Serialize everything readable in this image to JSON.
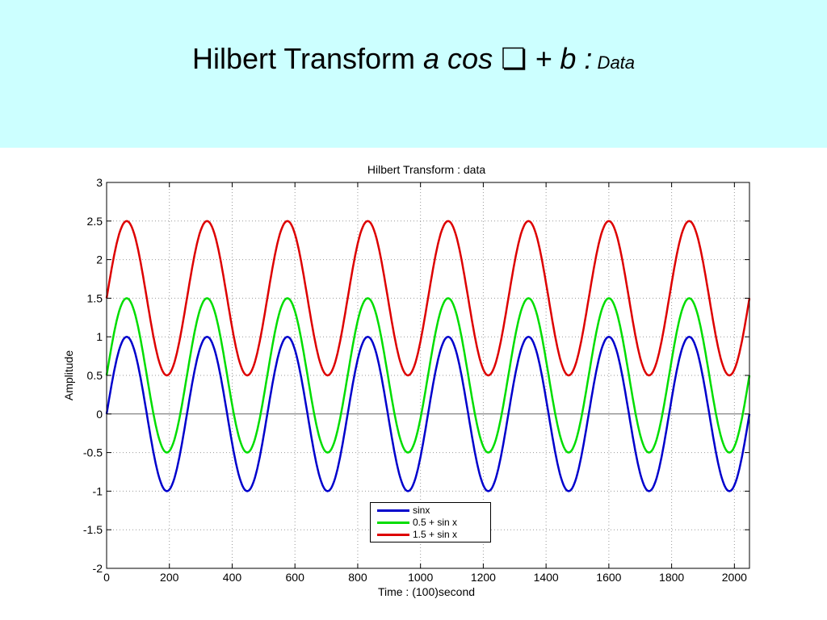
{
  "slide": {
    "title_plain": "Hilbert Transform ",
    "title_italic": "a cos ",
    "title_symbol": "❏",
    "title_expr": " + b ",
    "title_colon": ":",
    "title_suffix": " Data",
    "background": "#ccffff"
  },
  "chart_data": {
    "type": "line",
    "title": "Hilbert Transform : data",
    "xlabel": "Time : (100)second",
    "ylabel": "Amplitude",
    "xlim": [
      0,
      2048
    ],
    "ylim": [
      -2,
      3
    ],
    "x_ticks": [
      0,
      200,
      400,
      600,
      800,
      1000,
      1200,
      1400,
      1600,
      1800,
      2000
    ],
    "x_tick_labels": [
      "0",
      "200",
      "400",
      "600",
      "800",
      "1000",
      "1200",
      "1400",
      "1600",
      "1800",
      "2000"
    ],
    "y_ticks": [
      -2,
      -1.5,
      -1,
      -0.5,
      0,
      0.5,
      1,
      1.5,
      2,
      2.5,
      3
    ],
    "y_tick_labels": [
      "-2",
      "-1.5",
      "-1",
      "-0.5",
      "0",
      "0.5",
      "1",
      "1.5",
      "2",
      "2.5",
      "3"
    ],
    "grid": true,
    "legend_position": "bottom-center",
    "period": 256,
    "series": [
      {
        "name": "sinx",
        "offset": 0,
        "amplitude": 1,
        "color": "#0000cc"
      },
      {
        "name": "0.5 + sin x",
        "offset": 0.5,
        "amplitude": 1,
        "color": "#00dd00"
      },
      {
        "name": "1.5 + sin x",
        "offset": 1.5,
        "amplitude": 1,
        "color": "#dd0000"
      }
    ]
  }
}
